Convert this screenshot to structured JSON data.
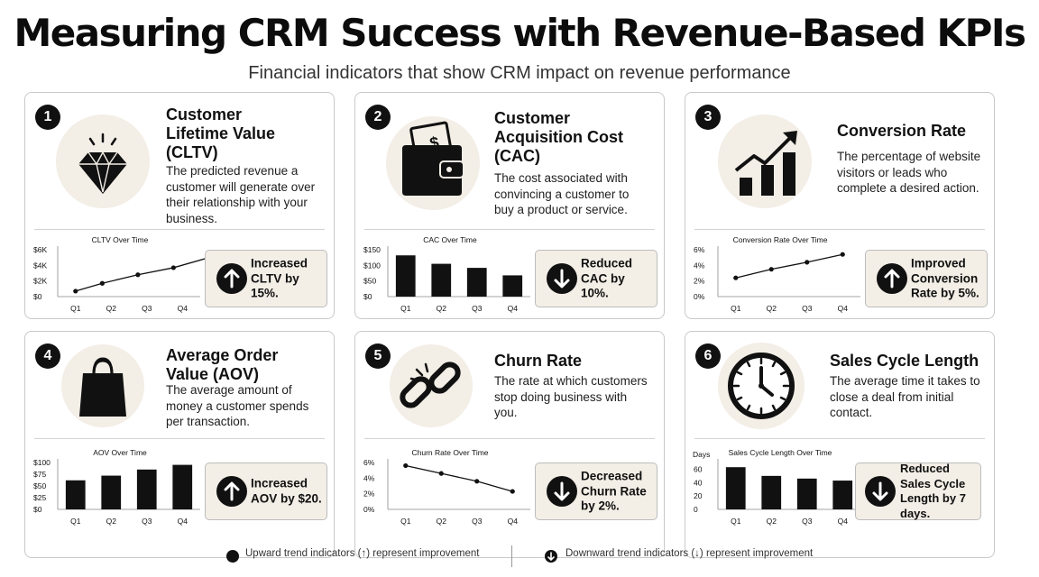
{
  "header": {
    "title": "Measuring CRM Success with Revenue-Based KPIs",
    "subtitle": "Financial indicators that show CRM impact on revenue performance"
  },
  "cards": [
    {
      "number": "1",
      "title": "Customer Lifetime Value (CLTV)",
      "description": "The predicted revenue a customer will generate over their relationship with your business.",
      "icon": "diamond-icon",
      "trend": "up",
      "callout": "Increased CLTV by 15%."
    },
    {
      "number": "2",
      "title": "Customer Acquisition Cost (CAC)",
      "description": "The cost associated with convincing a customer to buy a product or service.",
      "icon": "wallet-icon",
      "trend": "down",
      "callout": "Reduced CAC by 10%."
    },
    {
      "number": "3",
      "title": "Conversion Rate",
      "description": "The percentage of website visitors or leads who complete a desired action.",
      "icon": "growth-chart-icon",
      "trend": "up",
      "callout": "Improved Conversion Rate by 5%."
    },
    {
      "number": "4",
      "title": "Average Order Value (AOV)",
      "description": "The average amount of money a customer spends per transaction.",
      "icon": "shopping-bag-icon",
      "trend": "up",
      "callout": "Increased AOV by $20."
    },
    {
      "number": "5",
      "title": "Churn Rate",
      "description": "The rate at which customers stop doing business with you.",
      "icon": "broken-chain-icon",
      "trend": "down",
      "callout": "Decreased Churn Rate by 2%."
    },
    {
      "number": "6",
      "title": "Sales Cycle Length",
      "description": "The average time it takes to close a deal from initial contact.",
      "icon": "clock-icon",
      "trend": "down",
      "callout": "Reduced Sales Cycle Length by 7 days."
    }
  ],
  "chart_data": [
    {
      "type": "line",
      "title": "CLTV Over Time",
      "categories": [
        "Q1",
        "Q2",
        "Q3",
        "Q4"
      ],
      "values": [
        0.7,
        1.7,
        2.8,
        3.7,
        5.0
      ],
      "x": [
        0,
        0.75,
        1.75,
        2.75,
        3.75
      ],
      "yticks": [
        "$0",
        "$2K",
        "$4K",
        "$6K"
      ],
      "ytick_values": [
        0,
        2,
        4,
        6
      ],
      "ylim": [
        0,
        6
      ],
      "grid": false
    },
    {
      "type": "bar",
      "title": "CAC Over Time",
      "categories": [
        "Q1",
        "Q2",
        "Q3",
        "Q4"
      ],
      "values": [
        132,
        105,
        92,
        68
      ],
      "yticks": [
        "$0",
        "$50",
        "$100",
        "$150"
      ],
      "ytick_values": [
        0,
        50,
        100,
        150
      ],
      "ylim": [
        0,
        150
      ],
      "grid": false
    },
    {
      "type": "line",
      "title": "Conversion Rate Over Time",
      "categories": [
        "Q1",
        "Q2",
        "Q3",
        "Q4"
      ],
      "values": [
        2.4,
        3.5,
        4.4,
        5.4
      ],
      "x": [
        0,
        1,
        2,
        3
      ],
      "yticks": [
        "0%",
        "2%",
        "4%",
        "6%"
      ],
      "ytick_values": [
        0,
        2,
        4,
        6
      ],
      "ylim": [
        0,
        6
      ],
      "grid": false
    },
    {
      "type": "bar",
      "title": "AOV Over Time",
      "categories": [
        "Q1",
        "Q2",
        "Q3",
        "Q4"
      ],
      "values": [
        62,
        72,
        85,
        95
      ],
      "yticks": [
        "$0",
        "$25",
        "$50",
        "$75",
        "$100"
      ],
      "ytick_values": [
        0,
        25,
        50,
        75,
        100
      ],
      "ylim": [
        0,
        100
      ],
      "grid": false
    },
    {
      "type": "line",
      "title": "Churn Rate Over Time",
      "categories": [
        "Q1",
        "Q2",
        "Q3",
        "Q4"
      ],
      "values": [
        5.6,
        4.6,
        3.6,
        2.3
      ],
      "x": [
        0,
        1,
        2,
        3
      ],
      "yticks": [
        "0%",
        "2%",
        "4%",
        "6%"
      ],
      "ytick_values": [
        0,
        2,
        4,
        6
      ],
      "ylim": [
        0,
        6
      ],
      "grid": false
    },
    {
      "type": "bar",
      "title": "Sales Cycle Length Over Time",
      "ylabel": "Days",
      "categories": [
        "Q1",
        "Q2",
        "Q3",
        "Q4"
      ],
      "values": [
        63,
        50,
        46,
        43
      ],
      "yticks": [
        "0",
        "20",
        "40",
        "60"
      ],
      "ytick_values": [
        0,
        20,
        40,
        60
      ],
      "ylim": [
        0,
        70
      ],
      "grid": false
    }
  ],
  "legend": {
    "up_text": "Upward trend indicators (↑) represent improvement",
    "down_text": "Downward trend indicators (↓) represent improvement"
  },
  "colors": {
    "ink": "#111111",
    "accent_bg": "#f3eee6",
    "border": "#c9c9c9"
  }
}
